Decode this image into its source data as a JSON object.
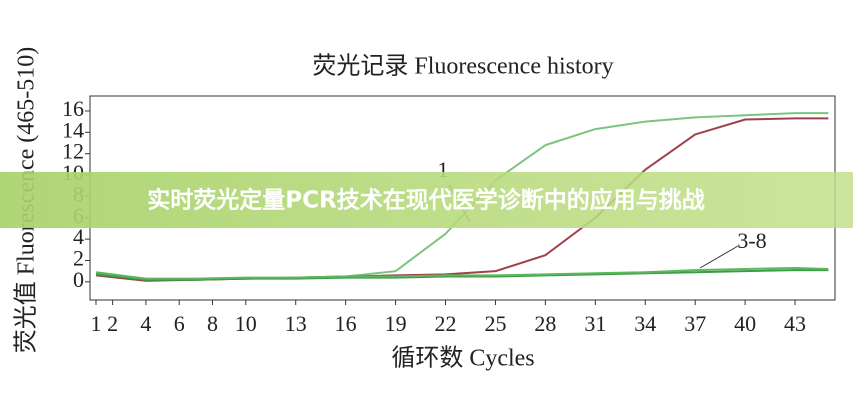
{
  "chart_data": {
    "type": "line",
    "title": "荧光记录 Fluorescence history",
    "x_label": "循环数 Cycles",
    "y_label": "荧光值 Fluorescence (465-510)",
    "x": [
      1,
      4,
      7,
      10,
      13,
      16,
      19,
      22,
      25,
      28,
      31,
      34,
      37,
      40,
      43,
      45
    ],
    "series": [
      {
        "color": "#7cc47f",
        "values": [
          0.8,
          0.2,
          0.2,
          0.3,
          0.4,
          0.5,
          1.0,
          4.5,
          9.5,
          12.8,
          14.3,
          15.0,
          15.4,
          15.6,
          15.8,
          15.8
        ]
      },
      {
        "color": "#a0404a",
        "values": [
          0.6,
          0.1,
          0.2,
          0.3,
          0.4,
          0.5,
          0.6,
          0.7,
          1.0,
          2.5,
          6.0,
          10.5,
          13.8,
          15.2,
          15.3,
          15.3
        ]
      },
      {
        "color": "#3d9a4a",
        "values": [
          0.7,
          0.2,
          0.2,
          0.3,
          0.3,
          0.4,
          0.4,
          0.5,
          0.5,
          0.6,
          0.7,
          0.8,
          0.9,
          1.0,
          1.1,
          1.1
        ]
      },
      {
        "color": "#5cb85c",
        "values": [
          0.9,
          0.3,
          0.3,
          0.4,
          0.4,
          0.5,
          0.5,
          0.6,
          0.6,
          0.7,
          0.8,
          0.9,
          1.1,
          1.2,
          1.3,
          1.2
        ]
      }
    ],
    "annotations": [
      "1",
      "3-8"
    ],
    "xlim": [
      0.64,
      45.4
    ],
    "ylim": [
      -1.7,
      17.4
    ],
    "xticks": [
      1,
      2,
      4,
      6,
      8,
      10,
      13,
      16,
      19,
      22,
      25,
      28,
      31,
      34,
      37,
      40,
      43
    ],
    "yticks": [
      0,
      2,
      4,
      6,
      8,
      10,
      12,
      14,
      16
    ]
  },
  "banner": "实时荧光定量PCR技术在现代医学诊断中的应用与挑战"
}
